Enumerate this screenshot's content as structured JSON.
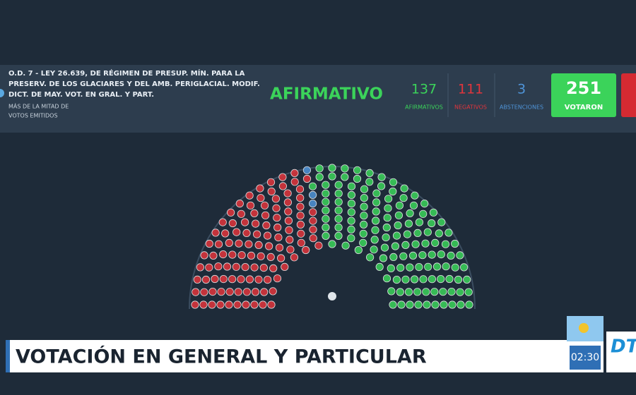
{
  "header": {
    "title_lines": [
      "O.D. 7 - LEY 26.639, DE RÉGIMEN DE PRESUP. MÍN. PARA LA",
      "PRESERV. DE LOS GLACIARES Y DEL AMB. PERIGLACIAL. MODIF.",
      "DICT. DE MAY. VOT. EN GRAL. Y PART."
    ],
    "majority_lines": [
      "MÁS DE LA MITAD DE",
      "VOTOS EMITIDOS"
    ],
    "result": "AFIRMATIVO"
  },
  "counts": [
    {
      "label": "AFIRMATIVOS",
      "value": 137,
      "color": "#3bd35a"
    },
    {
      "label": "NEGATIVOS",
      "value": 111,
      "color": "#e0353c"
    },
    {
      "label": "ABSTENCIONES",
      "value": 3,
      "color": "#4f94d8"
    }
  ],
  "total": {
    "label": "VOTARON",
    "value": 251
  },
  "banner": "VOTACIÓN EN GENERAL Y PARTICULAR",
  "clock": "02:30",
  "logo": "DT"
}
